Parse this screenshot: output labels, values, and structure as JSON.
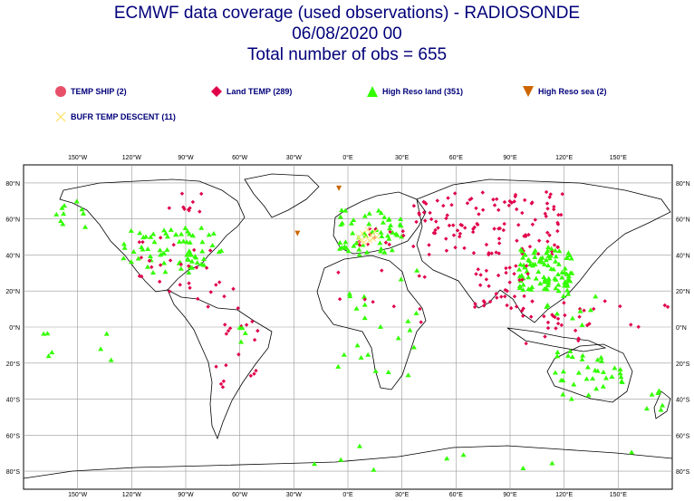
{
  "header": {
    "line1": "ECMWF data coverage (used observations) - RADIOSONDE",
    "line2": "06/08/2020 00",
    "line3": "Total number of obs = 655"
  },
  "legend": [
    {
      "label": "TEMP SHIP (2)",
      "symbol": "circle",
      "color": "#e8506a"
    },
    {
      "label": "Land TEMP (289)",
      "symbol": "diamond",
      "color": "#e0004a"
    },
    {
      "label": "High Reso land (351)",
      "symbol": "triangle-up",
      "color": "#33ff00"
    },
    {
      "label": "High Reso sea (2)",
      "symbol": "triangle-down",
      "color": "#cc6600"
    },
    {
      "label": "BUFR TEMP DESCENT (11)",
      "symbol": "cross",
      "color": "#ffe680"
    }
  ],
  "axes": {
    "lon_labels": [
      "150°W",
      "120°W",
      "90°W",
      "60°W",
      "30°W",
      "0°E",
      "30°E",
      "60°E",
      "90°E",
      "120°E",
      "150°E"
    ],
    "lat_labels": [
      "80°N",
      "60°N",
      "40°N",
      "20°N",
      "0°N",
      "20°S",
      "40°S",
      "60°S",
      "80°S"
    ]
  },
  "colors": {
    "grid": "#999999",
    "coast": "#000000",
    "text": "#00007a"
  }
}
